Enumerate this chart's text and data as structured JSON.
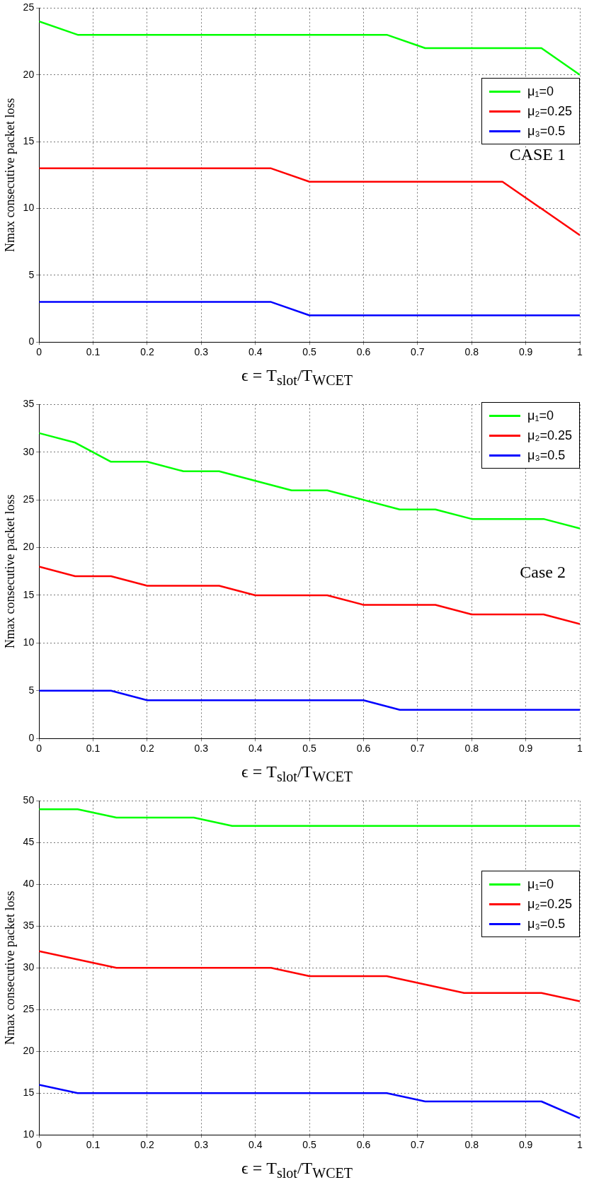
{
  "chart_data": [
    {
      "type": "line",
      "ylabel": "Nmax consecutive packet loss",
      "xlabel": "ϵ = T$_{slot}$/T$_{WCET}$",
      "xlim": [
        0,
        1
      ],
      "xticks": [
        0,
        0.1,
        0.2,
        0.3,
        0.4,
        0.5,
        0.6,
        0.7,
        0.8,
        0.9,
        1
      ],
      "ylim": [
        0,
        25
      ],
      "yticks": [
        0,
        5,
        10,
        15,
        20,
        25
      ],
      "grid": true,
      "legend": "right",
      "marker": "none",
      "line_style": "solid",
      "annotations": [
        "CASE 1"
      ],
      "series": [
        {
          "name": "μ₁=0",
          "color": "#00ff00",
          "x": [
            0,
            0.0714,
            0.643,
            0.714,
            0.929,
            1
          ],
          "values": [
            24,
            23,
            23,
            22,
            22,
            20
          ]
        },
        {
          "name": "μ₂=0.25",
          "color": "#ff0000",
          "x": [
            0,
            0.429,
            0.5,
            0.857,
            1
          ],
          "values": [
            13,
            13,
            12,
            12,
            8
          ]
        },
        {
          "name": "μ₃=0.5",
          "color": "#0000ff",
          "x": [
            0,
            0.429,
            0.5,
            1
          ],
          "values": [
            3,
            3,
            2,
            2
          ]
        }
      ]
    },
    {
      "type": "line",
      "ylabel": "Nmax consecutive packet loss",
      "xlabel": "ϵ = T$_{slot}$/T$_{WCET}$",
      "xlim": [
        0,
        1
      ],
      "xticks": [
        0,
        0.1,
        0.2,
        0.3,
        0.4,
        0.5,
        0.6,
        0.7,
        0.8,
        0.9,
        1
      ],
      "ylim": [
        0,
        35
      ],
      "yticks": [
        0,
        5,
        10,
        15,
        20,
        25,
        30,
        35
      ],
      "grid": true,
      "legend": "top right",
      "marker": "none",
      "line_style": "solid",
      "annotations": [
        "Case 2"
      ],
      "series": [
        {
          "name": "μ₁=0",
          "color": "#00ff00",
          "x": [
            0,
            0.0667,
            0.133,
            0.2,
            0.267,
            0.333,
            0.467,
            0.533,
            0.667,
            0.733,
            0.8,
            0.933,
            1
          ],
          "values": [
            32,
            31,
            29,
            29,
            28,
            28,
            26,
            26,
            24,
            24,
            23,
            23,
            22
          ]
        },
        {
          "name": "μ₂=0.25",
          "color": "#ff0000",
          "x": [
            0,
            0.0667,
            0.133,
            0.2,
            0.333,
            0.4,
            0.533,
            0.6,
            0.733,
            0.8,
            0.933,
            1
          ],
          "values": [
            18,
            17,
            17,
            16,
            16,
            15,
            15,
            14,
            14,
            13,
            13,
            12
          ]
        },
        {
          "name": "μ₃=0.5",
          "color": "#0000ff",
          "x": [
            0,
            0.133,
            0.2,
            0.6,
            0.667,
            1
          ],
          "values": [
            5,
            5,
            4,
            4,
            3,
            3
          ]
        }
      ]
    },
    {
      "type": "line",
      "ylabel": "Nmax consecutive packet loss",
      "xlabel": "ϵ = T$_{slot}$/T$_{WCET}$",
      "xlim": [
        0,
        1
      ],
      "xticks": [
        0,
        0.1,
        0.2,
        0.3,
        0.4,
        0.5,
        0.6,
        0.7,
        0.8,
        0.9,
        1
      ],
      "ylim": [
        10,
        50
      ],
      "yticks": [
        10,
        15,
        20,
        25,
        30,
        35,
        40,
        45,
        50
      ],
      "grid": true,
      "legend": "right",
      "marker": "none",
      "line_style": "solid",
      "series": [
        {
          "name": "μ₁=0",
          "color": "#00ff00",
          "x": [
            0,
            0.0714,
            0.143,
            0.286,
            0.357,
            1
          ],
          "values": [
            49,
            49,
            48,
            48,
            47,
            47
          ]
        },
        {
          "name": "μ₂=0.25",
          "color": "#ff0000",
          "x": [
            0,
            0.143,
            0.429,
            0.5,
            0.643,
            0.786,
            0.929,
            1
          ],
          "values": [
            32,
            30,
            30,
            29,
            29,
            27,
            27,
            26
          ]
        },
        {
          "name": "μ₃=0.5",
          "color": "#0000ff",
          "x": [
            0,
            0.0714,
            0.643,
            0.714,
            0.929,
            1
          ],
          "values": [
            16,
            15,
            15,
            14,
            14,
            12
          ]
        }
      ]
    }
  ]
}
